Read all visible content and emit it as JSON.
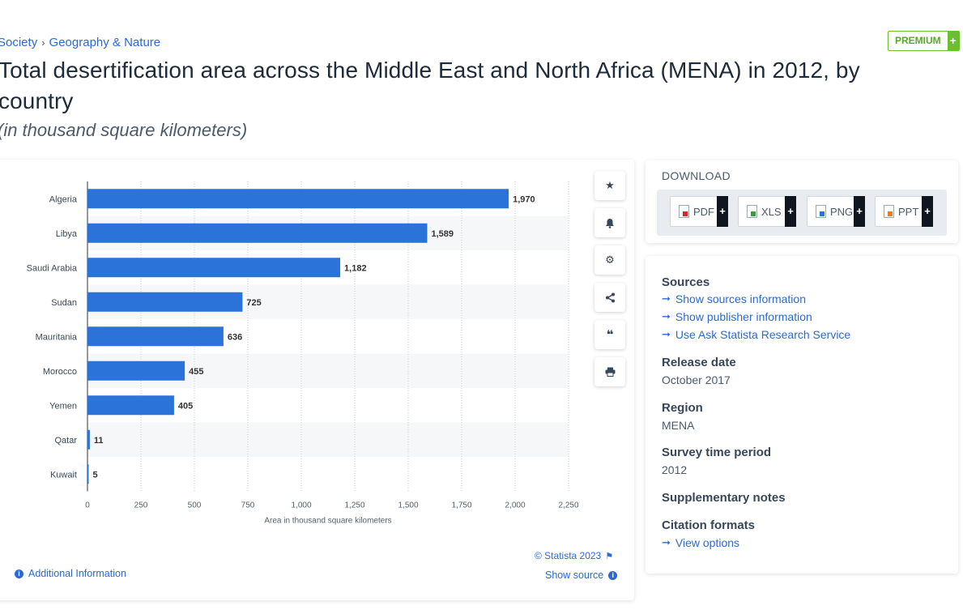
{
  "breadcrumb": {
    "item1": "Society",
    "item2": "Geography & Nature"
  },
  "premium": {
    "label": "PREMIUM",
    "plus": "+"
  },
  "title": "Total desertification area across the Middle East and North Africa (MENA) in 2012, by country",
  "subtitle": "(in thousand square kilometers)",
  "chart_data": {
    "type": "bar",
    "orientation": "horizontal",
    "categories": [
      "Algeria",
      "Libya",
      "Saudi Arabia",
      "Sudan",
      "Mauritania",
      "Morocco",
      "Yemen",
      "Qatar",
      "Kuwait"
    ],
    "values": [
      1970,
      1589,
      1182,
      725,
      636,
      455,
      405,
      11,
      5
    ],
    "value_labels": [
      "1,970",
      "1,589",
      "1,182",
      "725",
      "636",
      "455",
      "405",
      "11",
      "5"
    ],
    "xlabel": "Area in thousand square kilometers",
    "ylabel": "",
    "xlim": [
      0,
      2250
    ],
    "xticks": [
      0,
      250,
      500,
      750,
      1000,
      1250,
      1500,
      1750,
      2000,
      2250
    ],
    "xtick_labels": [
      "0",
      "250",
      "500",
      "750",
      "1,000",
      "1,250",
      "1,500",
      "1,750",
      "2,000",
      "2,250"
    ],
    "bar_color": "#2b72d9",
    "grid": true
  },
  "chart_footer": {
    "copyright": "© Statista 2023",
    "show_source": "Show source",
    "additional_info": "Additional Information"
  },
  "tools": [
    "star-icon",
    "bell-icon",
    "gear-icon",
    "share-icon",
    "quote-icon",
    "print-icon"
  ],
  "download": {
    "title": "DOWNLOAD",
    "buttons": [
      {
        "label": "PDF",
        "color": "#d9262f"
      },
      {
        "label": "XLS",
        "color": "#3c9b3c"
      },
      {
        "label": "PNG",
        "color": "#2b72d9"
      },
      {
        "label": "PPT",
        "color": "#e8792a"
      }
    ],
    "plus": "+"
  },
  "info": {
    "sources_heading": "Sources",
    "sources_links": [
      "Show sources information",
      "Show publisher information",
      "Use Ask Statista Research Service"
    ],
    "release_heading": "Release date",
    "release_value": "October 2017",
    "region_heading": "Region",
    "region_value": "MENA",
    "survey_heading": "Survey time period",
    "survey_value": "2012",
    "supp_heading": "Supplementary notes",
    "citation_heading": "Citation formats",
    "citation_link": "View options"
  }
}
